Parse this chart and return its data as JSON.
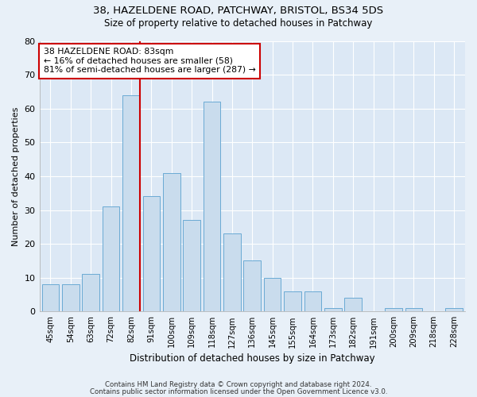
{
  "title1": "38, HAZELDENE ROAD, PATCHWAY, BRISTOL, BS34 5DS",
  "title2": "Size of property relative to detached houses in Patchway",
  "xlabel": "Distribution of detached houses by size in Patchway",
  "ylabel": "Number of detached properties",
  "bin_labels": [
    "45sqm",
    "54sqm",
    "63sqm",
    "72sqm",
    "82sqm",
    "91sqm",
    "100sqm",
    "109sqm",
    "118sqm",
    "127sqm",
    "136sqm",
    "145sqm",
    "155sqm",
    "164sqm",
    "173sqm",
    "182sqm",
    "191sqm",
    "200sqm",
    "209sqm",
    "218sqm",
    "228sqm"
  ],
  "bar_values": [
    8,
    8,
    11,
    31,
    64,
    34,
    41,
    27,
    62,
    23,
    15,
    10,
    6,
    6,
    1,
    4,
    0,
    1,
    1,
    0,
    1
  ],
  "bar_color": "#c9dced",
  "bar_edge_color": "#6aaad4",
  "property_line_index": 4,
  "annotation_line1": "38 HAZELDENE ROAD: 83sqm",
  "annotation_line2": "← 16% of detached houses are smaller (58)",
  "annotation_line3": "81% of semi-detached houses are larger (287) →",
  "annotation_box_color": "#ffffff",
  "annotation_box_edge_color": "#cc0000",
  "vline_color": "#cc0000",
  "ylim": [
    0,
    80
  ],
  "yticks": [
    0,
    10,
    20,
    30,
    40,
    50,
    60,
    70,
    80
  ],
  "bg_color": "#dce8f5",
  "fig_bg_color": "#e8f0f8",
  "footer1": "Contains HM Land Registry data © Crown copyright and database right 2024.",
  "footer2": "Contains public sector information licensed under the Open Government Licence v3.0."
}
